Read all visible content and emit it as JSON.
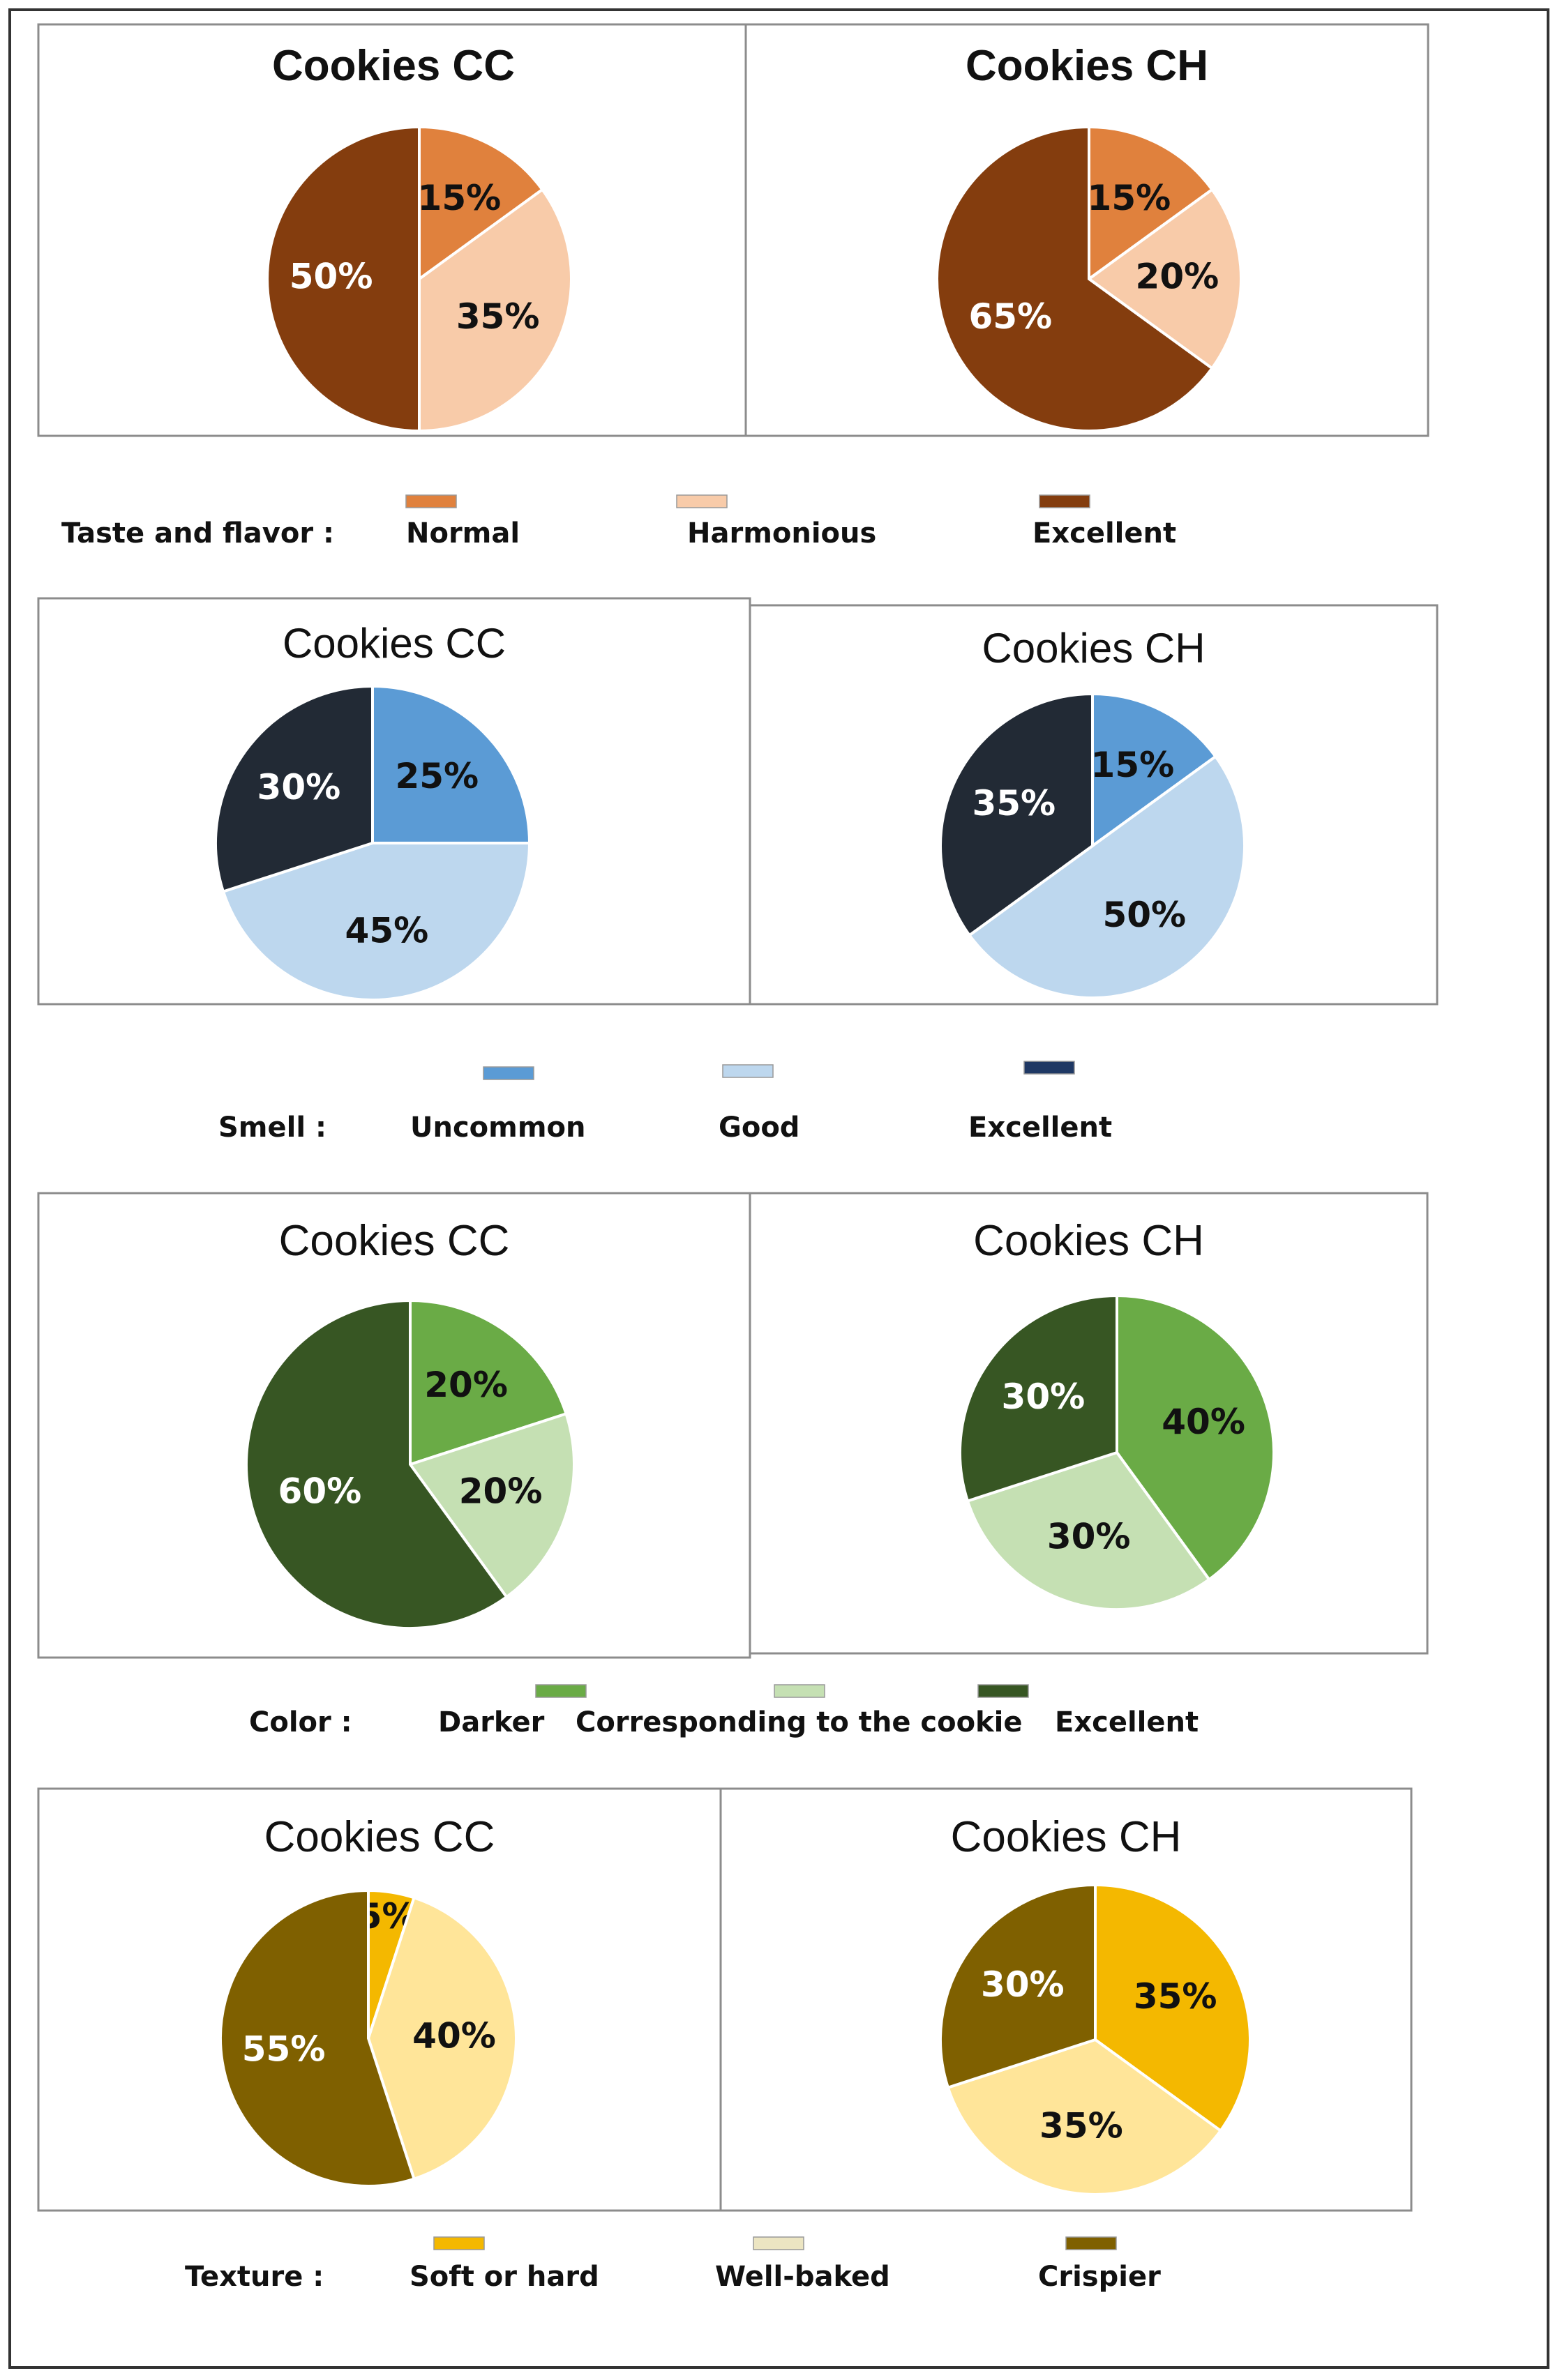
{
  "chart_data": [
    {
      "type": "pie",
      "group": "Taste and flavor",
      "title": "Cookies CC",
      "categories": [
        "Normal",
        "Harmonious",
        "Excellent"
      ],
      "values": [
        15,
        35,
        50
      ],
      "labels": [
        "15%",
        "35%",
        "50%"
      ],
      "colors": [
        "#e0813d",
        "#f8cba9",
        "#843d0e"
      ],
      "label_colors": [
        "#111111",
        "#111111",
        "#ffffff"
      ]
    },
    {
      "type": "pie",
      "group": "Taste and flavor",
      "title": "Cookies CH",
      "categories": [
        "Normal",
        "Harmonious",
        "Excellent"
      ],
      "values": [
        15,
        20,
        65
      ],
      "labels": [
        "15%",
        "20%",
        "65%"
      ],
      "colors": [
        "#e0813d",
        "#f8cba9",
        "#843d0e"
      ],
      "label_colors": [
        "#111111",
        "#111111",
        "#ffffff"
      ]
    },
    {
      "type": "pie",
      "group": "Smell",
      "title": "Cookies CC",
      "categories": [
        "Uncommon",
        "Good",
        "Excellent"
      ],
      "values": [
        25,
        45,
        30
      ],
      "labels": [
        "25%",
        "45%",
        "30%"
      ],
      "colors": [
        "#5b9bd5",
        "#bdd7ee",
        "#222a35"
      ],
      "label_colors": [
        "#111111",
        "#111111",
        "#ffffff"
      ]
    },
    {
      "type": "pie",
      "group": "Smell",
      "title": "Cookies CH",
      "categories": [
        "Uncommon",
        "Good",
        "Excellent"
      ],
      "values": [
        15,
        50,
        35
      ],
      "labels": [
        "15%",
        "50%",
        "35%"
      ],
      "colors": [
        "#5b9bd5",
        "#bdd7ee",
        "#222a35"
      ],
      "label_colors": [
        "#111111",
        "#111111",
        "#ffffff"
      ]
    },
    {
      "type": "pie",
      "group": "Color",
      "title": "Cookies CC",
      "categories": [
        "Darker",
        "Corresponding to the cookie",
        "Excellent"
      ],
      "values": [
        20,
        20,
        60
      ],
      "labels": [
        "20%",
        "20%",
        "60%"
      ],
      "colors": [
        "#6aab46",
        "#c5e0b3",
        "#375623"
      ],
      "label_colors": [
        "#111111",
        "#111111",
        "#ffffff"
      ]
    },
    {
      "type": "pie",
      "group": "Color",
      "title": "Cookies CH",
      "categories": [
        "Darker",
        "Corresponding to the cookie",
        "Excellent"
      ],
      "values": [
        40,
        30,
        30
      ],
      "labels": [
        "40%",
        "30%",
        "30%"
      ],
      "colors": [
        "#6aab46",
        "#c5e0b3",
        "#375623"
      ],
      "label_colors": [
        "#111111",
        "#111111",
        "#ffffff"
      ]
    },
    {
      "type": "pie",
      "group": "Texture",
      "title": "Cookies CC",
      "categories": [
        "Soft or hard",
        "Well-baked",
        "Crispier"
      ],
      "values": [
        5,
        40,
        55
      ],
      "labels": [
        "5%",
        "40%",
        "55%"
      ],
      "colors": [
        "#f4b800",
        "#ffe599",
        "#7f6000"
      ],
      "label_colors": [
        "#111111",
        "#111111",
        "#ffffff"
      ]
    },
    {
      "type": "pie",
      "group": "Texture",
      "title": "Cookies CH",
      "categories": [
        "Soft or hard",
        "Well-baked",
        "Crispier"
      ],
      "values": [
        35,
        35,
        30
      ],
      "labels": [
        "35%",
        "35%",
        "30%"
      ],
      "colors": [
        "#f4b800",
        "#ffe599",
        "#7f6000"
      ],
      "label_colors": [
        "#111111",
        "#111111",
        "#ffffff"
      ]
    }
  ],
  "legends": [
    {
      "label": "Taste and flavor :",
      "items": [
        "Normal",
        "Harmonious",
        "Excellent"
      ],
      "colors": [
        "#e0813d",
        "#f8cba9",
        "#843d0e"
      ]
    },
    {
      "label": "Smell :",
      "items": [
        "Uncommon",
        "Good",
        "Excellent"
      ],
      "colors": [
        "#5b9bd5",
        "#bdd7ee",
        "#1f3864"
      ]
    },
    {
      "label": "Color :",
      "items": [
        "Darker",
        "Corresponding to the cookie",
        "Excellent"
      ],
      "colors": [
        "#6aab46",
        "#c5e0b3",
        "#375623"
      ]
    },
    {
      "label": "Texture :",
      "items": [
        "Soft or hard",
        "Well-baked",
        "Crispier"
      ],
      "colors": [
        "#f4b800",
        "#ece5c2",
        "#7f6000"
      ]
    }
  ]
}
